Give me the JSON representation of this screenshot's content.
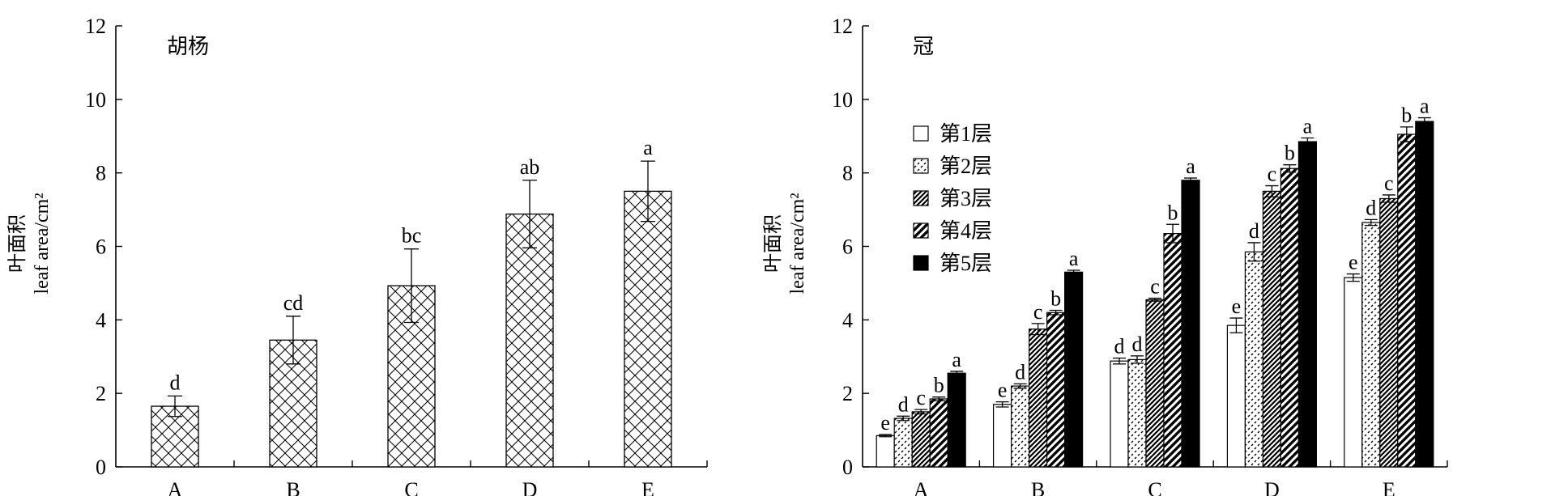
{
  "chart_data": [
    {
      "type": "bar",
      "title": "胡杨",
      "ylabel": "叶面积",
      "ylabel_en": "leaf area/cm²",
      "ylim": [
        0,
        12
      ],
      "yticks": [
        "0",
        "2",
        "4",
        "6",
        "8",
        "10",
        "12"
      ],
      "categories": [
        "A",
        "B",
        "C",
        "D",
        "E"
      ],
      "values": [
        1.65,
        3.45,
        4.93,
        6.88,
        7.5
      ],
      "errors": [
        0.28,
        0.65,
        1.0,
        0.92,
        0.82
      ],
      "labels": [
        "d",
        "cd",
        "bc",
        "ab",
        "a"
      ]
    },
    {
      "type": "bar",
      "title": "冠",
      "ylabel": "叶面积",
      "ylabel_en": "leaf area/cm²",
      "ylim": [
        0,
        12
      ],
      "yticks": [
        "0",
        "2",
        "4",
        "6",
        "8",
        "10",
        "12"
      ],
      "categories": [
        "A",
        "B",
        "C",
        "D",
        "E"
      ],
      "legend_position": "top-left",
      "series": [
        {
          "name": "第1层",
          "values": [
            0.85,
            1.7,
            2.88,
            3.85,
            5.15
          ],
          "errors": [
            0.03,
            0.07,
            0.08,
            0.2,
            0.1
          ],
          "labels": [
            "e",
            "e",
            "d",
            "e",
            "e"
          ]
        },
        {
          "name": "第2层",
          "values": [
            1.32,
            2.2,
            2.92,
            5.85,
            6.65
          ],
          "errors": [
            0.06,
            0.06,
            0.1,
            0.25,
            0.08
          ],
          "labels": [
            "d",
            "d",
            "d",
            "d",
            "d"
          ]
        },
        {
          "name": "第3层",
          "values": [
            1.5,
            3.75,
            4.55,
            7.5,
            7.3
          ],
          "errors": [
            0.06,
            0.15,
            0.04,
            0.15,
            0.1
          ],
          "labels": [
            "c",
            "c",
            "c",
            "c",
            "c"
          ]
        },
        {
          "name": "第4层",
          "values": [
            1.85,
            4.2,
            6.35,
            8.12,
            9.05
          ],
          "errors": [
            0.05,
            0.06,
            0.25,
            0.1,
            0.2
          ],
          "labels": [
            "b",
            "b",
            "b",
            "b",
            "b"
          ]
        },
        {
          "name": "第5层",
          "values": [
            2.55,
            5.3,
            7.8,
            8.85,
            9.4
          ],
          "errors": [
            0.05,
            0.05,
            0.06,
            0.1,
            0.1
          ],
          "labels": [
            "a",
            "a",
            "a",
            "a",
            "a"
          ]
        }
      ]
    }
  ]
}
